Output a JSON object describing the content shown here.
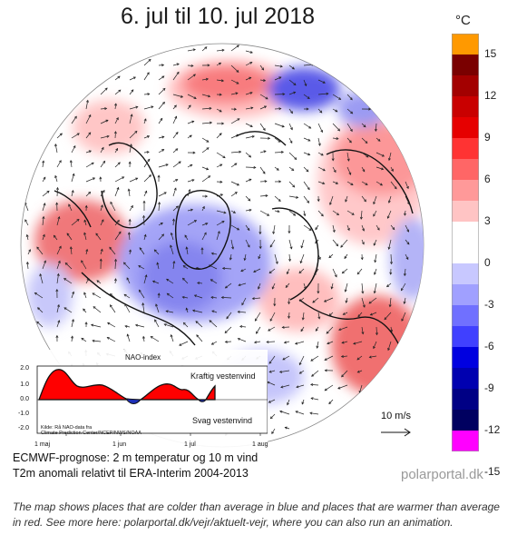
{
  "title": "6. jul til 10. jul 2018",
  "colorbar": {
    "unit": "°C",
    "ticks": [
      15,
      12,
      9,
      6,
      3,
      0,
      -3,
      -6,
      -9,
      -12,
      -15
    ],
    "colors": [
      "#ff9900",
      "#7a0000",
      "#a30000",
      "#c90000",
      "#e60000",
      "#ff3333",
      "#ff6666",
      "#ff9999",
      "#ffc4c4",
      "#ffffff",
      "#ffffff",
      "#c8c8ff",
      "#a0a0ff",
      "#7070ff",
      "#4040ff",
      "#0000e0",
      "#0000b0",
      "#000085",
      "#000060",
      "#ff00ff"
    ]
  },
  "wind_scale": {
    "label": "10 m/s"
  },
  "nao_inset": {
    "title": "NAO-index",
    "strong_label": "Kraftig vestenvind",
    "weak_label": "Svag vestenvind",
    "source_line1": "Kilde: Rå NAO-data fra",
    "source_line2": "Climate Prediction Center/NCEP/NWS/NOAA",
    "y_ticks": [
      "2.0",
      "1.0",
      "0.0",
      "-1.0",
      "-2.0"
    ],
    "x_ticks": [
      "1 maj",
      "1 jun",
      "1 jul",
      "1 aug"
    ]
  },
  "footer_line1": "ECMWF-prognose: 2 m temperatur og 10 m vind",
  "footer_line2": "T2m anomali relativt til ERA-Interim 2004-2013",
  "brand": "polarportal.dk",
  "caption": "The map shows places that are colder than average in blue and places that are warmer than average in red. See more here: polarportal.dk/vejr/aktuelt-vejr, where you can also run an animation."
}
